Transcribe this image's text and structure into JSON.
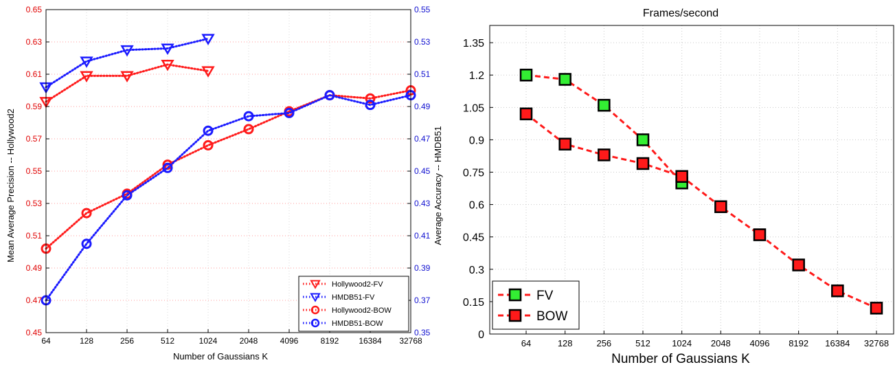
{
  "chart_data": [
    {
      "type": "line",
      "title": "",
      "xlabel": "Number of Gaussians K",
      "ylabel_left": "Mean Average Precision -- Hollywood2",
      "ylabel_right": "Average Accuracy -- HMDB51",
      "categories": [
        "64",
        "128",
        "256",
        "512",
        "1024",
        "2048",
        "4096",
        "8192",
        "16384",
        "32768"
      ],
      "ylim_left": [
        0.45,
        0.65
      ],
      "yticks_left": [
        "0.45",
        "0.47",
        "0.49",
        "0.51",
        "0.53",
        "0.55",
        "0.57",
        "0.59",
        "0.61",
        "0.63",
        "0.65"
      ],
      "ylim_right": [
        0.35,
        0.55
      ],
      "yticks_right": [
        "0.35",
        "0.37",
        "0.39",
        "0.41",
        "0.43",
        "0.45",
        "0.47",
        "0.49",
        "0.51",
        "0.53",
        "0.55"
      ],
      "grid": true,
      "legend_position": "bottom-right",
      "left_axis_color": "#e00000",
      "right_axis_color": "#1010d0",
      "series": [
        {
          "name": "Hollywood2-FV",
          "axis": "left",
          "color": "#ff1a1a",
          "marker": "triangle-down",
          "values": [
            0.593,
            0.609,
            0.609,
            0.616,
            0.612,
            null,
            null,
            null,
            null,
            null
          ]
        },
        {
          "name": "HMDB51-FV",
          "axis": "right",
          "color": "#1a1aff",
          "marker": "triangle-down",
          "values": [
            0.502,
            0.518,
            0.525,
            0.526,
            0.532,
            null,
            null,
            null,
            null,
            null
          ]
        },
        {
          "name": "Hollywood2-BOW",
          "axis": "left",
          "color": "#ff1a1a",
          "marker": "circle",
          "values": [
            0.502,
            0.524,
            0.536,
            0.554,
            0.566,
            0.576,
            0.587,
            0.597,
            0.595,
            0.6
          ]
        },
        {
          "name": "HMDB51-BOW",
          "axis": "right",
          "color": "#1a1aff",
          "marker": "circle",
          "values": [
            0.37,
            0.405,
            0.435,
            0.452,
            0.475,
            0.484,
            0.486,
            0.497,
            0.491,
            0.497
          ]
        }
      ]
    },
    {
      "type": "line",
      "title": "Frames/second",
      "xlabel": "Number of Gaussians K",
      "ylabel": "",
      "categories": [
        "64",
        "128",
        "256",
        "512",
        "1024",
        "2048",
        "4096",
        "8192",
        "16384",
        "32768"
      ],
      "ylim": [
        0,
        1.43
      ],
      "yticks": [
        "0",
        "0.15",
        "0.3",
        "0.45",
        "0.6",
        "0.75",
        "0.9",
        "1.05",
        "1.2",
        "1.35"
      ],
      "grid": true,
      "legend_position": "bottom-left",
      "series": [
        {
          "name": "FV",
          "color": "#ff1a1a",
          "fill": "#33ee33",
          "marker": "square",
          "values": [
            1.2,
            1.18,
            1.06,
            0.9,
            0.7,
            null,
            null,
            null,
            null,
            null
          ]
        },
        {
          "name": "BOW",
          "color": "#ff1a1a",
          "fill": "#ff1a1a",
          "marker": "square",
          "values": [
            1.02,
            0.88,
            0.83,
            0.79,
            0.73,
            0.59,
            0.46,
            0.32,
            0.2,
            0.12
          ]
        }
      ]
    }
  ]
}
